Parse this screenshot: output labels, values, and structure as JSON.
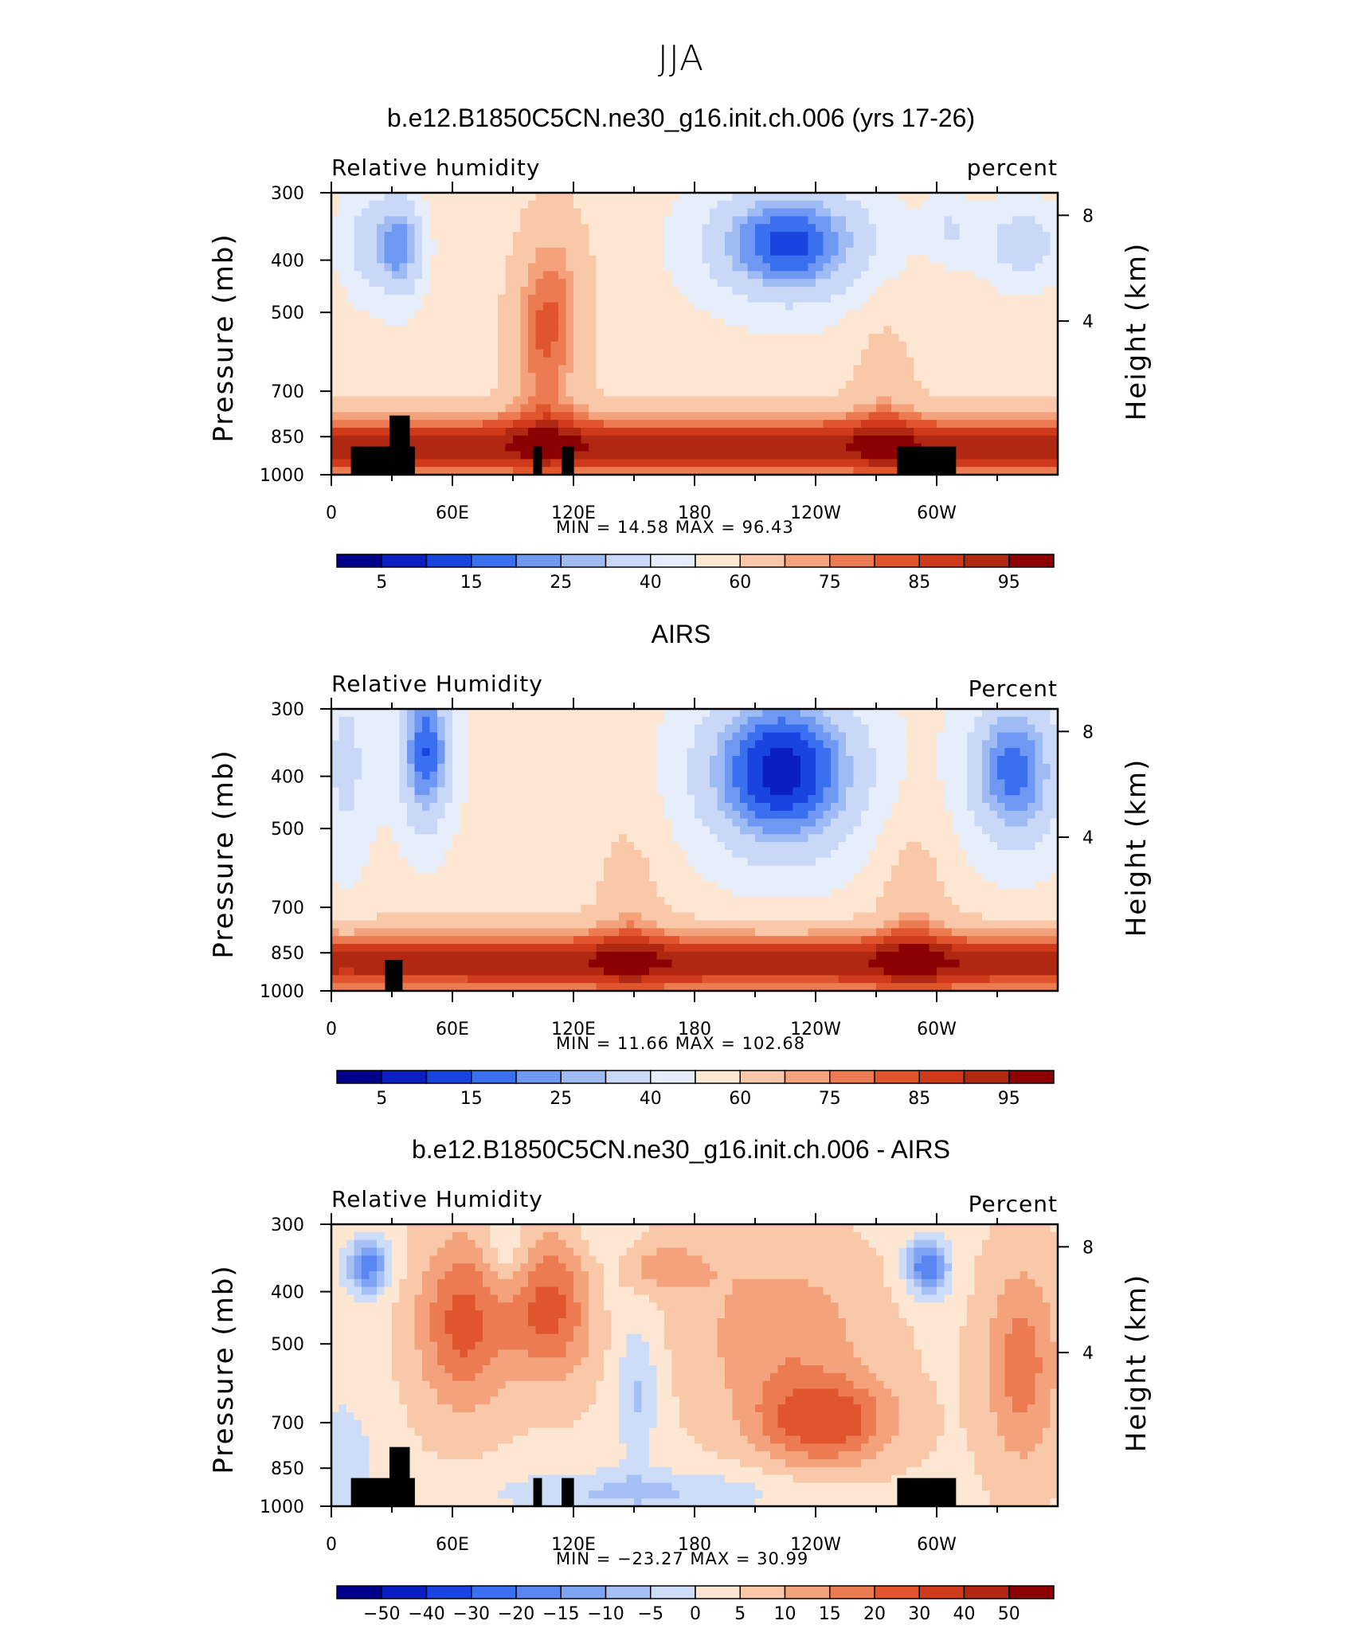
{
  "suptitle": "JJA",
  "chart_data": [
    {
      "type": "heatmap",
      "title": "b.e12.B1850C5CN.ne30_g16.init.ch.006 (yrs 17-26)",
      "left_string": "Relative  humidity",
      "right_string": "percent",
      "xlabel": "",
      "ylabel": "Pressure  (mb)",
      "y2label": "Height  (km)",
      "x_ticklabels": [
        "0",
        "60E",
        "120E",
        "180",
        "120W",
        "60W"
      ],
      "y_ticklabels": [
        "300",
        "400",
        "500",
        "700",
        "850",
        "1000"
      ],
      "y2_ticklabels": [
        "8",
        "4"
      ],
      "min_max": "MIN =   14.58   MAX =   96.43",
      "colorbar_labels": [
        "5",
        "15",
        "25",
        "40",
        "60",
        "75",
        "85",
        "95"
      ],
      "colorbar_colors": [
        "#00008b",
        "#0a1fbf",
        "#1a44e0",
        "#3a6ff0",
        "#6e98f2",
        "#9fbbf4",
        "#c8d8f6",
        "#e6eefb",
        "#fde6d2",
        "#f9c8a9",
        "#f3a27c",
        "#ec7b51",
        "#e0552e",
        "#cf3a1a",
        "#b02812",
        "#8b0000"
      ],
      "min": 14.58,
      "max": 96.43
    },
    {
      "type": "heatmap",
      "title": "AIRS",
      "left_string": "Relative  Humidity",
      "right_string": "Percent",
      "xlabel": "",
      "ylabel": "Pressure  (mb)",
      "y2label": "Height  (km)",
      "x_ticklabels": [
        "0",
        "60E",
        "120E",
        "180",
        "120W",
        "60W"
      ],
      "y_ticklabels": [
        "300",
        "400",
        "500",
        "700",
        "850",
        "1000"
      ],
      "y2_ticklabels": [
        "8",
        "4"
      ],
      "min_max": "MIN =   11.66   MAX =  102.68",
      "colorbar_labels": [
        "5",
        "15",
        "25",
        "40",
        "60",
        "75",
        "85",
        "95"
      ],
      "colorbar_colors": [
        "#00008b",
        "#0a1fbf",
        "#1a44e0",
        "#3a6ff0",
        "#6e98f2",
        "#9fbbf4",
        "#c8d8f6",
        "#e6eefb",
        "#fde6d2",
        "#f9c8a9",
        "#f3a27c",
        "#ec7b51",
        "#e0552e",
        "#cf3a1a",
        "#b02812",
        "#8b0000"
      ],
      "min": 11.66,
      "max": 102.68
    },
    {
      "type": "heatmap",
      "title": "b.e12.B1850C5CN.ne30_g16.init.ch.006 - AIRS",
      "left_string": "Relative  Humidity",
      "right_string": "Percent",
      "xlabel": "",
      "ylabel": "Pressure  (mb)",
      "y2label": "Height  (km)",
      "x_ticklabels": [
        "0",
        "60E",
        "120E",
        "180",
        "120W",
        "60W"
      ],
      "y_ticklabels": [
        "300",
        "400",
        "500",
        "700",
        "850",
        "1000"
      ],
      "y2_ticklabels": [
        "8",
        "4"
      ],
      "min_max": "MIN =  −23.27   MAX =   30.99",
      "colorbar_labels": [
        "−50",
        "−40",
        "−30",
        "−20",
        "−15",
        "−10",
        "−5",
        "0",
        "5",
        "10",
        "15",
        "20",
        "30",
        "40",
        "50"
      ],
      "colorbar_colors": [
        "#00008b",
        "#0a1fbf",
        "#1a44e0",
        "#3a6ff0",
        "#5a86f1",
        "#7ea3f3",
        "#a6c0f5",
        "#cddcf7",
        "#fde6d2",
        "#f9c8a9",
        "#f3a27c",
        "#ec7b51",
        "#e0552e",
        "#cf3a1a",
        "#b02812",
        "#8b0000"
      ],
      "min": -23.27,
      "max": 30.99
    }
  ]
}
